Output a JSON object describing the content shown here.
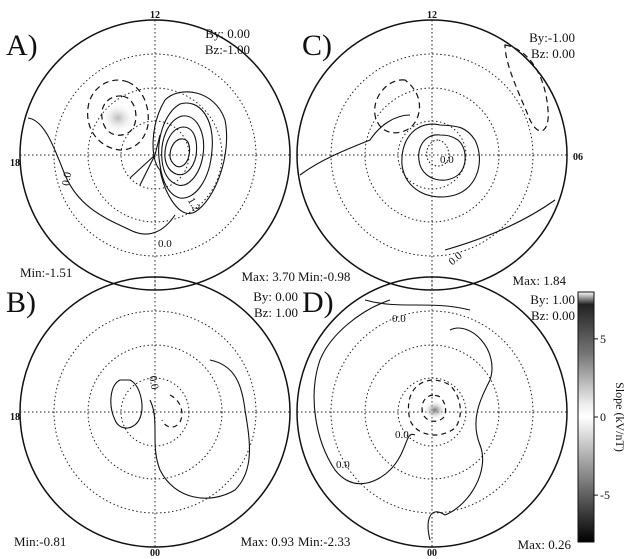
{
  "panels": [
    {
      "id": "A",
      "letter": "A)",
      "by": "By: 0.00",
      "bz": "Bz:-1.00",
      "min": "Min:-1.51",
      "max": "Max: 3.70",
      "clock_top": "12",
      "clock_left": "18",
      "clock_right": "",
      "clock_bottom": "",
      "contour_labels": [
        "0.0",
        "0.0",
        "1.2"
      ]
    },
    {
      "id": "C",
      "letter": "C)",
      "by": "By:-1.00",
      "bz": "Bz: 0.00",
      "min": "Min:-0.98",
      "max": "Max: 1.84",
      "clock_top": "12",
      "clock_left": "",
      "clock_right": "06",
      "clock_bottom": "",
      "contour_labels": [
        "0.0",
        "0.0"
      ]
    },
    {
      "id": "B",
      "letter": "B)",
      "by": "By: 0.00",
      "bz": "Bz: 1.00",
      "min": "Min:-0.81",
      "max": "Max: 0.93",
      "clock_top": "",
      "clock_left": "18",
      "clock_right": "",
      "clock_bottom": "00",
      "contour_labels": [
        "0.0"
      ]
    },
    {
      "id": "D",
      "letter": "D)",
      "by": "By: 1.00",
      "bz": "Bz: 0.00",
      "min": "Min:-2.33",
      "max": "Max: 0.26",
      "clock_top": "",
      "clock_left": "",
      "clock_right": "",
      "clock_bottom": "00",
      "contour_labels": [
        "0.0",
        "0.0",
        "0.0"
      ]
    }
  ],
  "colorbar": {
    "label": "Slope (kV/nT)",
    "ticks": [
      "5",
      "0",
      "-5"
    ],
    "tick_values": [
      5,
      0,
      -5
    ],
    "range": [
      -8,
      8
    ]
  }
}
